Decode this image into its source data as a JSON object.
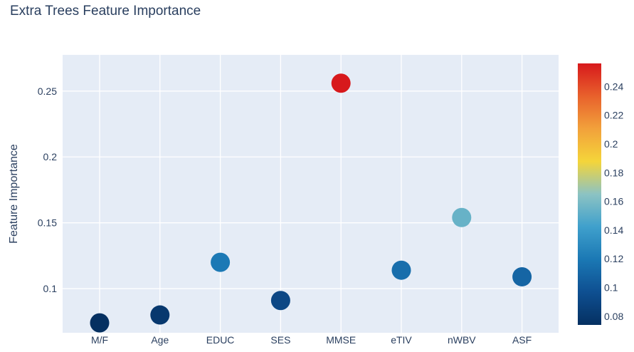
{
  "chart_data": {
    "type": "scatter",
    "title": "Extra Trees Feature Importance",
    "xlabel": "",
    "ylabel": "Feature Importance",
    "categories": [
      "M/F",
      "Age",
      "EDUC",
      "SES",
      "MMSE",
      "eTIV",
      "nWBV",
      "ASF"
    ],
    "values": [
      0.074,
      0.08,
      0.12,
      0.091,
      0.256,
      0.114,
      0.154,
      0.109
    ],
    "ylim": [
      0.0665,
      0.2775
    ],
    "yticks": [
      0.1,
      0.15,
      0.2,
      0.25
    ],
    "ytick_labels": [
      "0.1",
      "0.15",
      "0.2",
      "0.25"
    ],
    "grid": true,
    "colorbar": {
      "range": [
        0.074,
        0.256
      ],
      "ticks": [
        0.08,
        0.1,
        0.12,
        0.14,
        0.16,
        0.18,
        0.2,
        0.22,
        0.24
      ],
      "tick_labels": [
        "0.08",
        "0.1",
        "0.12",
        "0.14",
        "0.16",
        "0.18",
        "0.2",
        "0.22",
        "0.24"
      ],
      "colorscale": [
        "#053061",
        "#0e4f91",
        "#1b78b4",
        "#3fa0cc",
        "#8cc3c3",
        "#f4d53a",
        "#f2a13b",
        "#e8612c",
        "#d7191c"
      ]
    }
  }
}
